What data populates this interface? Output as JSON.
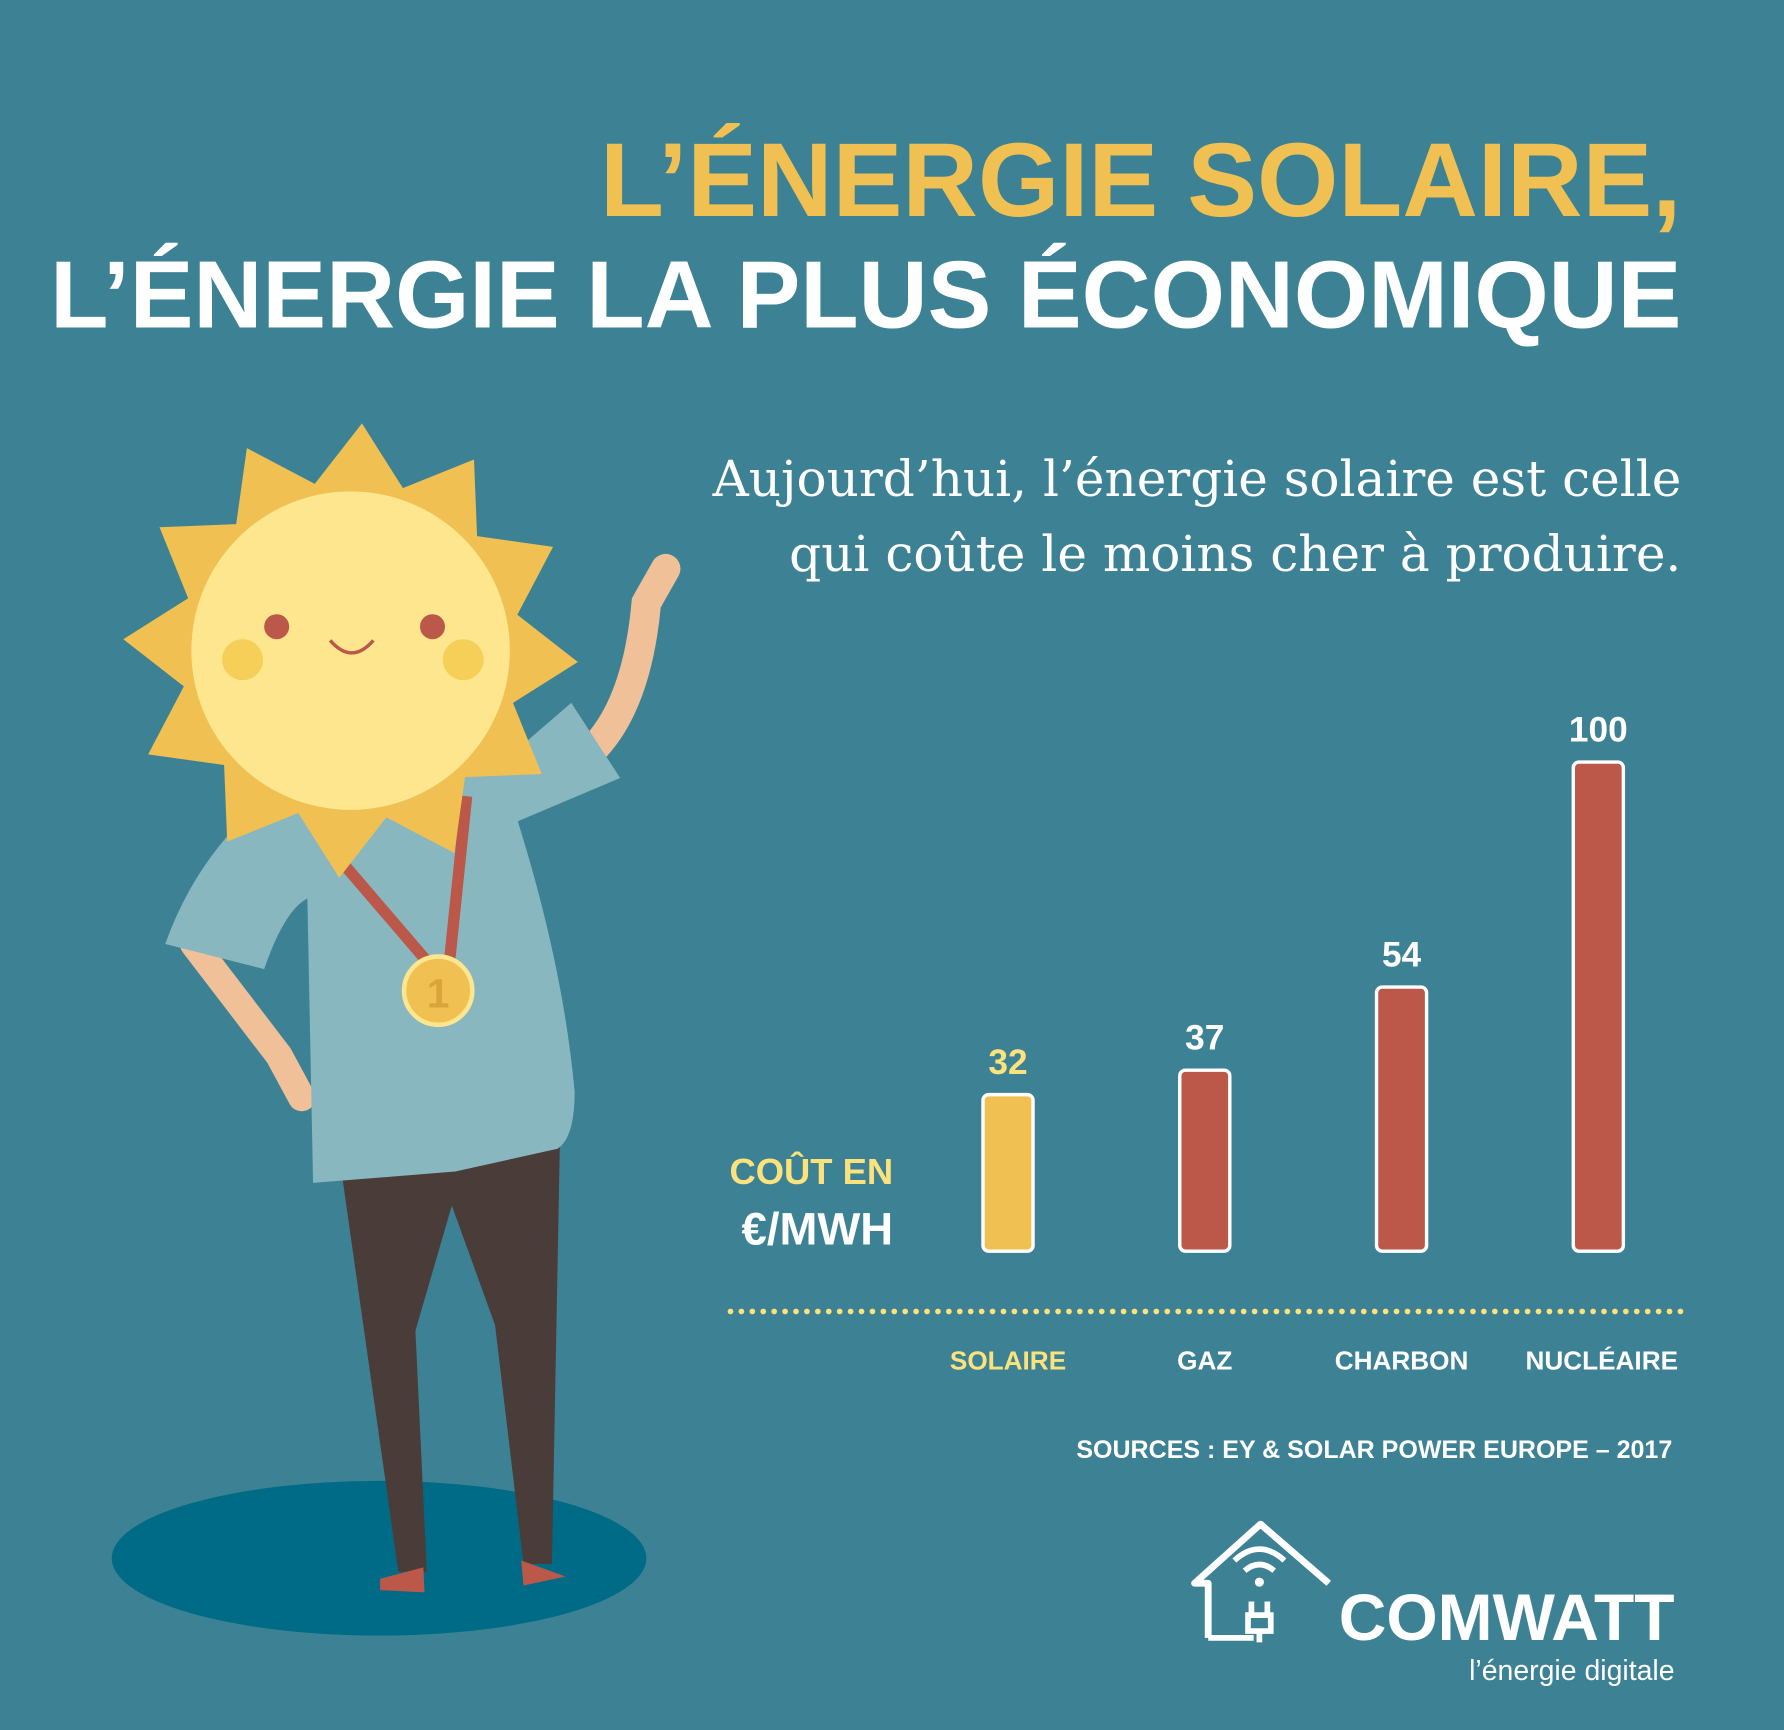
{
  "title": {
    "line1": "L’ÉNERGIE SOLAIRE,",
    "line2": "L’ÉNERGIE LA PLUS ÉCONOMIQUE"
  },
  "subtitle": {
    "line1": "Aujourd’hui, l’énergie solaire est celle",
    "line2": "qui coûte le moins cher à produire."
  },
  "colors": {
    "background": "#3d8294",
    "accent_yellow": "#f0c052",
    "label_yellow": "#fbe27d",
    "bar_red": "#bc5849",
    "white": "#ffffff"
  },
  "chart_data": {
    "type": "bar",
    "ylabel_line1": "COÛT EN",
    "ylabel_line2": "€/MWH",
    "categories": [
      "SOLAIRE",
      "GAZ",
      "CHARBON",
      "NUCLÉAIRE"
    ],
    "values": [
      32,
      37,
      54,
      100
    ],
    "value_labels": [
      "32",
      "37",
      "54",
      "100"
    ],
    "highlight_category": "SOLAIRE",
    "ylim": [
      0,
      100
    ],
    "grid": false,
    "source": "SOURCES : EY & SOLAR POWER EUROPE – 2017"
  },
  "medal": {
    "label": "1"
  },
  "logo": {
    "name": "COMWATT",
    "tagline": "l’énergie digitale"
  }
}
